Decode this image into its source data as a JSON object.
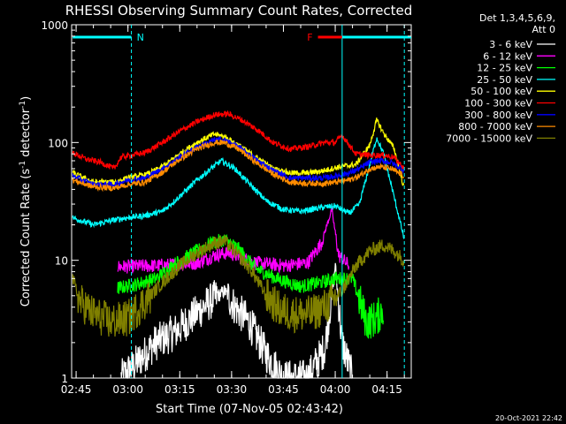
{
  "chart_data": {
    "type": "line",
    "title": "RHESSI Observing Summary Count Rates, Corrected",
    "ylabel_parts": [
      "Corrected Count Rate (s",
      "-1",
      " detector",
      "-1",
      ")"
    ],
    "xlabel": "Start Time (07-Nov-05 02:43:42)",
    "y_scale": "log",
    "ylim": [
      1,
      1000
    ],
    "y_ticks": [
      {
        "value": 1,
        "label": "1"
      },
      {
        "value": 10,
        "label": "10"
      },
      {
        "value": 100,
        "label": "100"
      },
      {
        "value": 1000,
        "label": "1000"
      }
    ],
    "xlim": [
      "02:43:42",
      "04:22:00"
    ],
    "x_ticks": [
      {
        "time": "02:45",
        "label": "02:45"
      },
      {
        "time": "03:00",
        "label": "03:00"
      },
      {
        "time": "03:15",
        "label": "03:15"
      },
      {
        "time": "03:30",
        "label": "03:30"
      },
      {
        "time": "03:45",
        "label": "03:45"
      },
      {
        "time": "04:00",
        "label": "04:00"
      },
      {
        "time": "04:15",
        "label": "04:15"
      }
    ],
    "legend_header": [
      "Det 1,3,4,5,6,9,",
      "Att 0"
    ],
    "legend_position": "right",
    "annotations": [
      {
        "text": "N",
        "color": "#00ffff",
        "bar": [
          "02:44",
          "03:01"
        ]
      },
      {
        "text": "F",
        "color": "#ff0000",
        "bar": [
          "03:55",
          "04:02"
        ]
      }
    ],
    "vertical_markers": [
      {
        "time": "03:01",
        "style": "dashed",
        "color": "#00ffff"
      },
      {
        "time": "04:02",
        "style": "solid",
        "color": "#00ffff"
      },
      {
        "time": "04:20",
        "style": "dashed",
        "color": "#00ffff"
      }
    ],
    "series": [
      {
        "name": "3 - 6 keV",
        "color": "#ffffff",
        "points": [
          [
            "02:58",
            1
          ],
          [
            "03:02",
            1.3
          ],
          [
            "03:08",
            2
          ],
          [
            "03:14",
            2.5
          ],
          [
            "03:20",
            3.6
          ],
          [
            "03:24",
            4.5
          ],
          [
            "03:28",
            5.5
          ],
          [
            "03:31",
            4
          ],
          [
            "03:35",
            3
          ],
          [
            "03:40",
            1.6
          ],
          [
            "03:45",
            1
          ],
          [
            "03:52",
            1
          ],
          [
            "03:57",
            1.8
          ],
          [
            "04:00",
            9
          ],
          [
            "04:02",
            2
          ],
          [
            "04:05",
            1
          ]
        ]
      },
      {
        "name": "6 - 12 keV",
        "color": "#ff00ff",
        "points": [
          [
            "02:57",
            8.8
          ],
          [
            "03:02",
            8.9
          ],
          [
            "03:08",
            9
          ],
          [
            "03:14",
            9.2
          ],
          [
            "03:20",
            9.5
          ],
          [
            "03:25",
            11
          ],
          [
            "03:29",
            11.6
          ],
          [
            "03:33",
            10.5
          ],
          [
            "03:37",
            9.5
          ],
          [
            "03:45",
            9
          ],
          [
            "03:52",
            9.5
          ],
          [
            "03:56",
            14
          ],
          [
            "03:59",
            27
          ],
          [
            "04:01",
            11
          ],
          [
            "04:04",
            9
          ]
        ]
      },
      {
        "name": "12 - 25 keV",
        "color": "#00ff00",
        "points": [
          [
            "02:57",
            5.8
          ],
          [
            "03:02",
            6.2
          ],
          [
            "03:08",
            7
          ],
          [
            "03:14",
            9.5
          ],
          [
            "03:20",
            12
          ],
          [
            "03:24",
            14
          ],
          [
            "03:28",
            15
          ],
          [
            "03:32",
            12.5
          ],
          [
            "03:37",
            8.5
          ],
          [
            "03:43",
            7
          ],
          [
            "03:50",
            6
          ],
          [
            "03:56",
            6.5
          ],
          [
            "04:00",
            7
          ],
          [
            "04:05",
            7
          ],
          [
            "04:09",
            3
          ],
          [
            "04:12",
            3.2
          ],
          [
            "04:14",
            4
          ]
        ]
      },
      {
        "name": "25 - 50 keV",
        "color": "#00ffff",
        "points": [
          [
            "02:44",
            23
          ],
          [
            "02:50",
            20
          ],
          [
            "02:56",
            22
          ],
          [
            "03:00",
            23
          ],
          [
            "03:05",
            24
          ],
          [
            "03:10",
            26
          ],
          [
            "03:15",
            35
          ],
          [
            "03:20",
            48
          ],
          [
            "03:24",
            60
          ],
          [
            "03:27",
            70
          ],
          [
            "03:31",
            60
          ],
          [
            "03:35",
            45
          ],
          [
            "03:40",
            32
          ],
          [
            "03:45",
            27
          ],
          [
            "03:50",
            26
          ],
          [
            "03:56",
            28
          ],
          [
            "04:00",
            29
          ],
          [
            "04:04",
            25
          ],
          [
            "04:07",
            30
          ],
          [
            "04:10",
            65
          ],
          [
            "04:12",
            110
          ],
          [
            "04:14",
            80
          ],
          [
            "04:17",
            35
          ],
          [
            "04:20",
            15
          ]
        ]
      },
      {
        "name": "50 - 100 keV",
        "color": "#ffff00",
        "points": [
          [
            "02:44",
            55
          ],
          [
            "02:50",
            46
          ],
          [
            "02:56",
            46
          ],
          [
            "03:00",
            50
          ],
          [
            "03:05",
            53
          ],
          [
            "03:10",
            62
          ],
          [
            "03:15",
            80
          ],
          [
            "03:20",
            100
          ],
          [
            "03:25",
            118
          ],
          [
            "03:28",
            112
          ],
          [
            "03:32",
            95
          ],
          [
            "03:37",
            75
          ],
          [
            "03:42",
            60
          ],
          [
            "03:47",
            55
          ],
          [
            "03:52",
            55
          ],
          [
            "03:57",
            58
          ],
          [
            "04:01",
            62
          ],
          [
            "04:06",
            65
          ],
          [
            "04:10",
            95
          ],
          [
            "04:12",
            155
          ],
          [
            "04:14",
            120
          ],
          [
            "04:17",
            90
          ],
          [
            "04:20",
            40
          ]
        ]
      },
      {
        "name": "100 - 300 keV",
        "color": "#ff0000",
        "points": [
          [
            "02:44",
            82
          ],
          [
            "02:48",
            72
          ],
          [
            "02:52",
            68
          ],
          [
            "02:56",
            60
          ],
          [
            "02:58",
            75
          ],
          [
            "03:05",
            82
          ],
          [
            "03:10",
            100
          ],
          [
            "03:15",
            125
          ],
          [
            "03:20",
            150
          ],
          [
            "03:25",
            172
          ],
          [
            "03:29",
            175
          ],
          [
            "03:33",
            155
          ],
          [
            "03:38",
            125
          ],
          [
            "03:42",
            100
          ],
          [
            "03:47",
            88
          ],
          [
            "03:52",
            92
          ],
          [
            "03:57",
            100
          ],
          [
            "04:00",
            100
          ],
          [
            "04:02",
            115
          ],
          [
            "04:06",
            80
          ],
          [
            "04:10",
            78
          ],
          [
            "04:14",
            78
          ],
          [
            "04:17",
            75
          ],
          [
            "04:20",
            60
          ]
        ]
      },
      {
        "name": "300 - 800 keV",
        "color": "#0000ff",
        "points": [
          [
            "02:44",
            52
          ],
          [
            "02:50",
            44
          ],
          [
            "02:56",
            44
          ],
          [
            "03:00",
            48
          ],
          [
            "03:05",
            50
          ],
          [
            "03:10",
            60
          ],
          [
            "03:15",
            75
          ],
          [
            "03:20",
            92
          ],
          [
            "03:25",
            105
          ],
          [
            "03:28",
            105
          ],
          [
            "03:32",
            92
          ],
          [
            "03:37",
            72
          ],
          [
            "03:42",
            58
          ],
          [
            "03:47",
            50
          ],
          [
            "03:52",
            50
          ],
          [
            "03:57",
            50
          ],
          [
            "04:00",
            52
          ],
          [
            "04:04",
            55
          ],
          [
            "04:07",
            60
          ],
          [
            "04:10",
            68
          ],
          [
            "04:13",
            70
          ],
          [
            "04:16",
            68
          ],
          [
            "04:20",
            58
          ]
        ]
      },
      {
        "name": "800 - 7000 keV",
        "color": "#ff8c00",
        "points": [
          [
            "02:44",
            48
          ],
          [
            "02:50",
            42
          ],
          [
            "02:56",
            41
          ],
          [
            "03:00",
            44
          ],
          [
            "03:05",
            46
          ],
          [
            "03:10",
            56
          ],
          [
            "03:15",
            72
          ],
          [
            "03:20",
            88
          ],
          [
            "03:25",
            100
          ],
          [
            "03:28",
            100
          ],
          [
            "03:32",
            88
          ],
          [
            "03:37",
            68
          ],
          [
            "03:42",
            54
          ],
          [
            "03:47",
            46
          ],
          [
            "03:52",
            45
          ],
          [
            "03:57",
            45
          ],
          [
            "04:00",
            46
          ],
          [
            "04:04",
            48
          ],
          [
            "04:07",
            52
          ],
          [
            "04:10",
            60
          ],
          [
            "04:13",
            62
          ],
          [
            "04:16",
            60
          ],
          [
            "04:20",
            52
          ]
        ]
      },
      {
        "name": "7000 - 15000 keV",
        "color": "#808000",
        "points": [
          [
            "02:44",
            7
          ],
          [
            "02:46",
            4.5
          ],
          [
            "02:50",
            3.5
          ],
          [
            "02:55",
            3
          ],
          [
            "03:00",
            3.2
          ],
          [
            "03:05",
            4.5
          ],
          [
            "03:10",
            6.5
          ],
          [
            "03:15",
            9
          ],
          [
            "03:20",
            11.5
          ],
          [
            "03:25",
            14
          ],
          [
            "03:28",
            14.5
          ],
          [
            "03:32",
            11
          ],
          [
            "03:36",
            8
          ],
          [
            "03:40",
            5
          ],
          [
            "03:44",
            3.8
          ],
          [
            "03:48",
            3.5
          ],
          [
            "03:53",
            3.5
          ],
          [
            "03:58",
            4.2
          ],
          [
            "04:02",
            5.5
          ],
          [
            "04:06",
            9
          ],
          [
            "04:10",
            12
          ],
          [
            "04:14",
            13.5
          ],
          [
            "04:17",
            12
          ],
          [
            "04:20",
            10
          ]
        ]
      }
    ]
  },
  "footer": {
    "timestamp": "20-Oct-2021 22:42"
  }
}
